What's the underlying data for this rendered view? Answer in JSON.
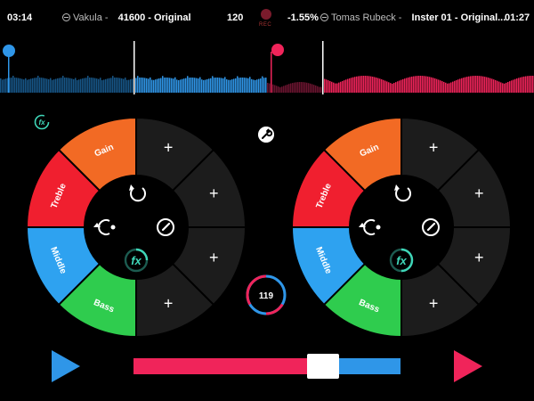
{
  "colors": {
    "deck_a": "#2f96e8",
    "deck_b": "#f0245a",
    "gain": "#f26a24",
    "treble": "#f01f2f",
    "middle": "#2ea2f0",
    "bass": "#2fcc4e",
    "empty_slot": "#1c1c1c",
    "hub": "#000000",
    "fx_accent": "#3fd6b8"
  },
  "topbar": {
    "left_time": "03:14",
    "left_track_artist": "Vakula -",
    "left_track_title": "41600 - Original",
    "bpm": "120",
    "rec_label": "REC",
    "pitch": "-1.55%",
    "right_track_artist": "Tomas Rubeck -",
    "right_track_title": "Inster 01 - Original...",
    "right_time": "01:27"
  },
  "deck_a": {
    "segments": {
      "gain": "Gain",
      "treble": "Treble",
      "middle": "Middle",
      "bass": "Bass"
    },
    "slot_symbol": "+",
    "hub_fx": "fx",
    "progress": 0.25
  },
  "deck_b": {
    "segments": {
      "gain": "Gain",
      "treble": "Treble",
      "middle": "Middle",
      "bass": "Bass"
    },
    "slot_symbol": "+",
    "hub_fx": "fx",
    "progress": 0.5
  },
  "center": {
    "fx_icon": "fx-icon",
    "settings_icon": "wrench-icon",
    "bpm_value": "119"
  },
  "crossfader": {
    "position": 0.74
  }
}
